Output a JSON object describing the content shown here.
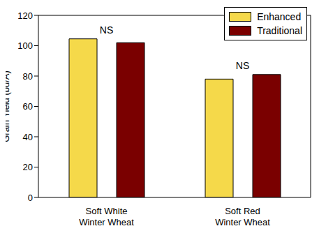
{
  "chart_data": {
    "type": "bar",
    "y_label": "Grain Yield (bu/A)",
    "categories": [
      "Soft White Winter Wheat",
      "Soft Red Winter Wheat"
    ],
    "series": [
      {
        "name": "Enhanced",
        "color": "#f5d94a",
        "values": [
          104.5,
          78
        ]
      },
      {
        "name": "Traditional",
        "color": "#7a0000",
        "values": [
          102,
          81
        ]
      }
    ],
    "ylim": [
      0,
      120
    ],
    "yticks": [
      0,
      20,
      40,
      60,
      80,
      100,
      120
    ],
    "grid": false,
    "legend": "upper right",
    "annotations": [
      {
        "category": "Soft White Winter Wheat",
        "text": "NS"
      },
      {
        "category": "Soft Red Winter Wheat",
        "text": "NS"
      }
    ]
  }
}
